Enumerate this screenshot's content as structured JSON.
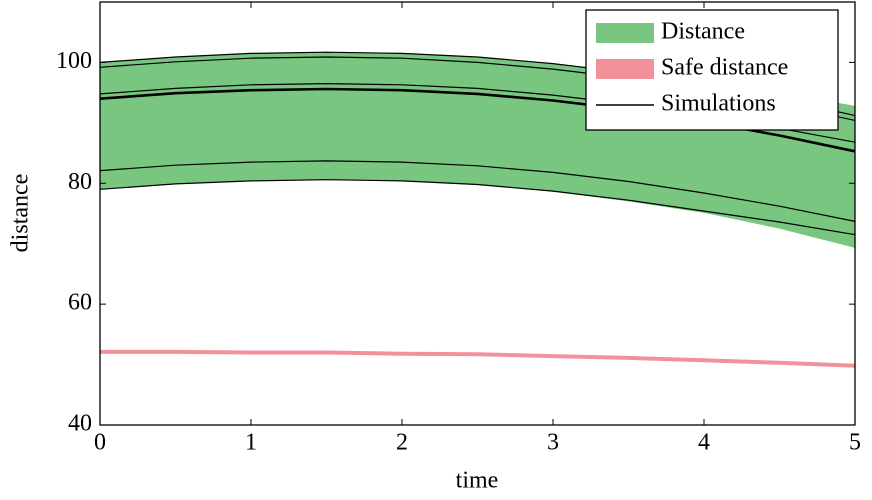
{
  "chart_data": {
    "type": "band-lines",
    "xlabel": "time",
    "ylabel": "distance",
    "x": [
      0,
      0.5,
      1,
      1.5,
      2,
      2.5,
      3,
      3.5,
      4,
      4.5,
      5
    ],
    "xlim": [
      0,
      5
    ],
    "xticks": [
      0,
      1,
      2,
      3,
      4,
      5
    ],
    "ylim": [
      40,
      110
    ],
    "yticks": [
      40,
      60,
      80,
      100
    ],
    "legend": "upper right",
    "series": [
      {
        "name": "Distance",
        "color": "#78c67f",
        "upper": [
          100.0,
          100.9,
          101.5,
          101.7,
          101.5,
          100.9,
          99.8,
          98.5,
          96.8,
          95.0,
          92.8
        ],
        "lower": [
          79.0,
          79.9,
          80.4,
          80.6,
          80.4,
          79.7,
          78.6,
          77.0,
          75.1,
          72.5,
          69.3
        ]
      },
      {
        "name": "Safe distance",
        "color": "#f29199",
        "values": [
          52.1,
          52.1,
          52.0,
          52.0,
          51.8,
          51.7,
          51.4,
          51.1,
          50.7,
          50.3,
          49.8
        ]
      },
      {
        "name": "Simulations",
        "color": "#000000",
        "lines": [
          {
            "width": 1.2,
            "values": [
              100.0,
              100.9,
              101.5,
              101.7,
              101.5,
              100.9,
              99.8,
              98.3,
              96.4,
              94.0,
              91.2
            ]
          },
          {
            "width": 1.2,
            "values": [
              99.2,
              100.1,
              100.7,
              100.9,
              100.7,
              100.0,
              98.9,
              97.4,
              95.5,
              93.1,
              90.4
            ]
          },
          {
            "width": 1.2,
            "values": [
              94.8,
              95.7,
              96.3,
              96.5,
              96.3,
              95.7,
              94.6,
              93.1,
              91.2,
              89.1,
              86.8
            ]
          },
          {
            "width": 2.6,
            "values": [
              94.0,
              94.9,
              95.4,
              95.6,
              95.4,
              94.8,
              93.7,
              92.2,
              90.2,
              87.9,
              85.3
            ]
          },
          {
            "width": 1.2,
            "values": [
              82.1,
              83.0,
              83.5,
              83.7,
              83.5,
              82.9,
              81.8,
              80.3,
              78.4,
              76.2,
              73.7
            ]
          },
          {
            "width": 1.2,
            "values": [
              79.0,
              79.9,
              80.4,
              80.6,
              80.4,
              79.8,
              78.7,
              77.2,
              75.4,
              73.6,
              71.5
            ]
          }
        ]
      }
    ]
  }
}
